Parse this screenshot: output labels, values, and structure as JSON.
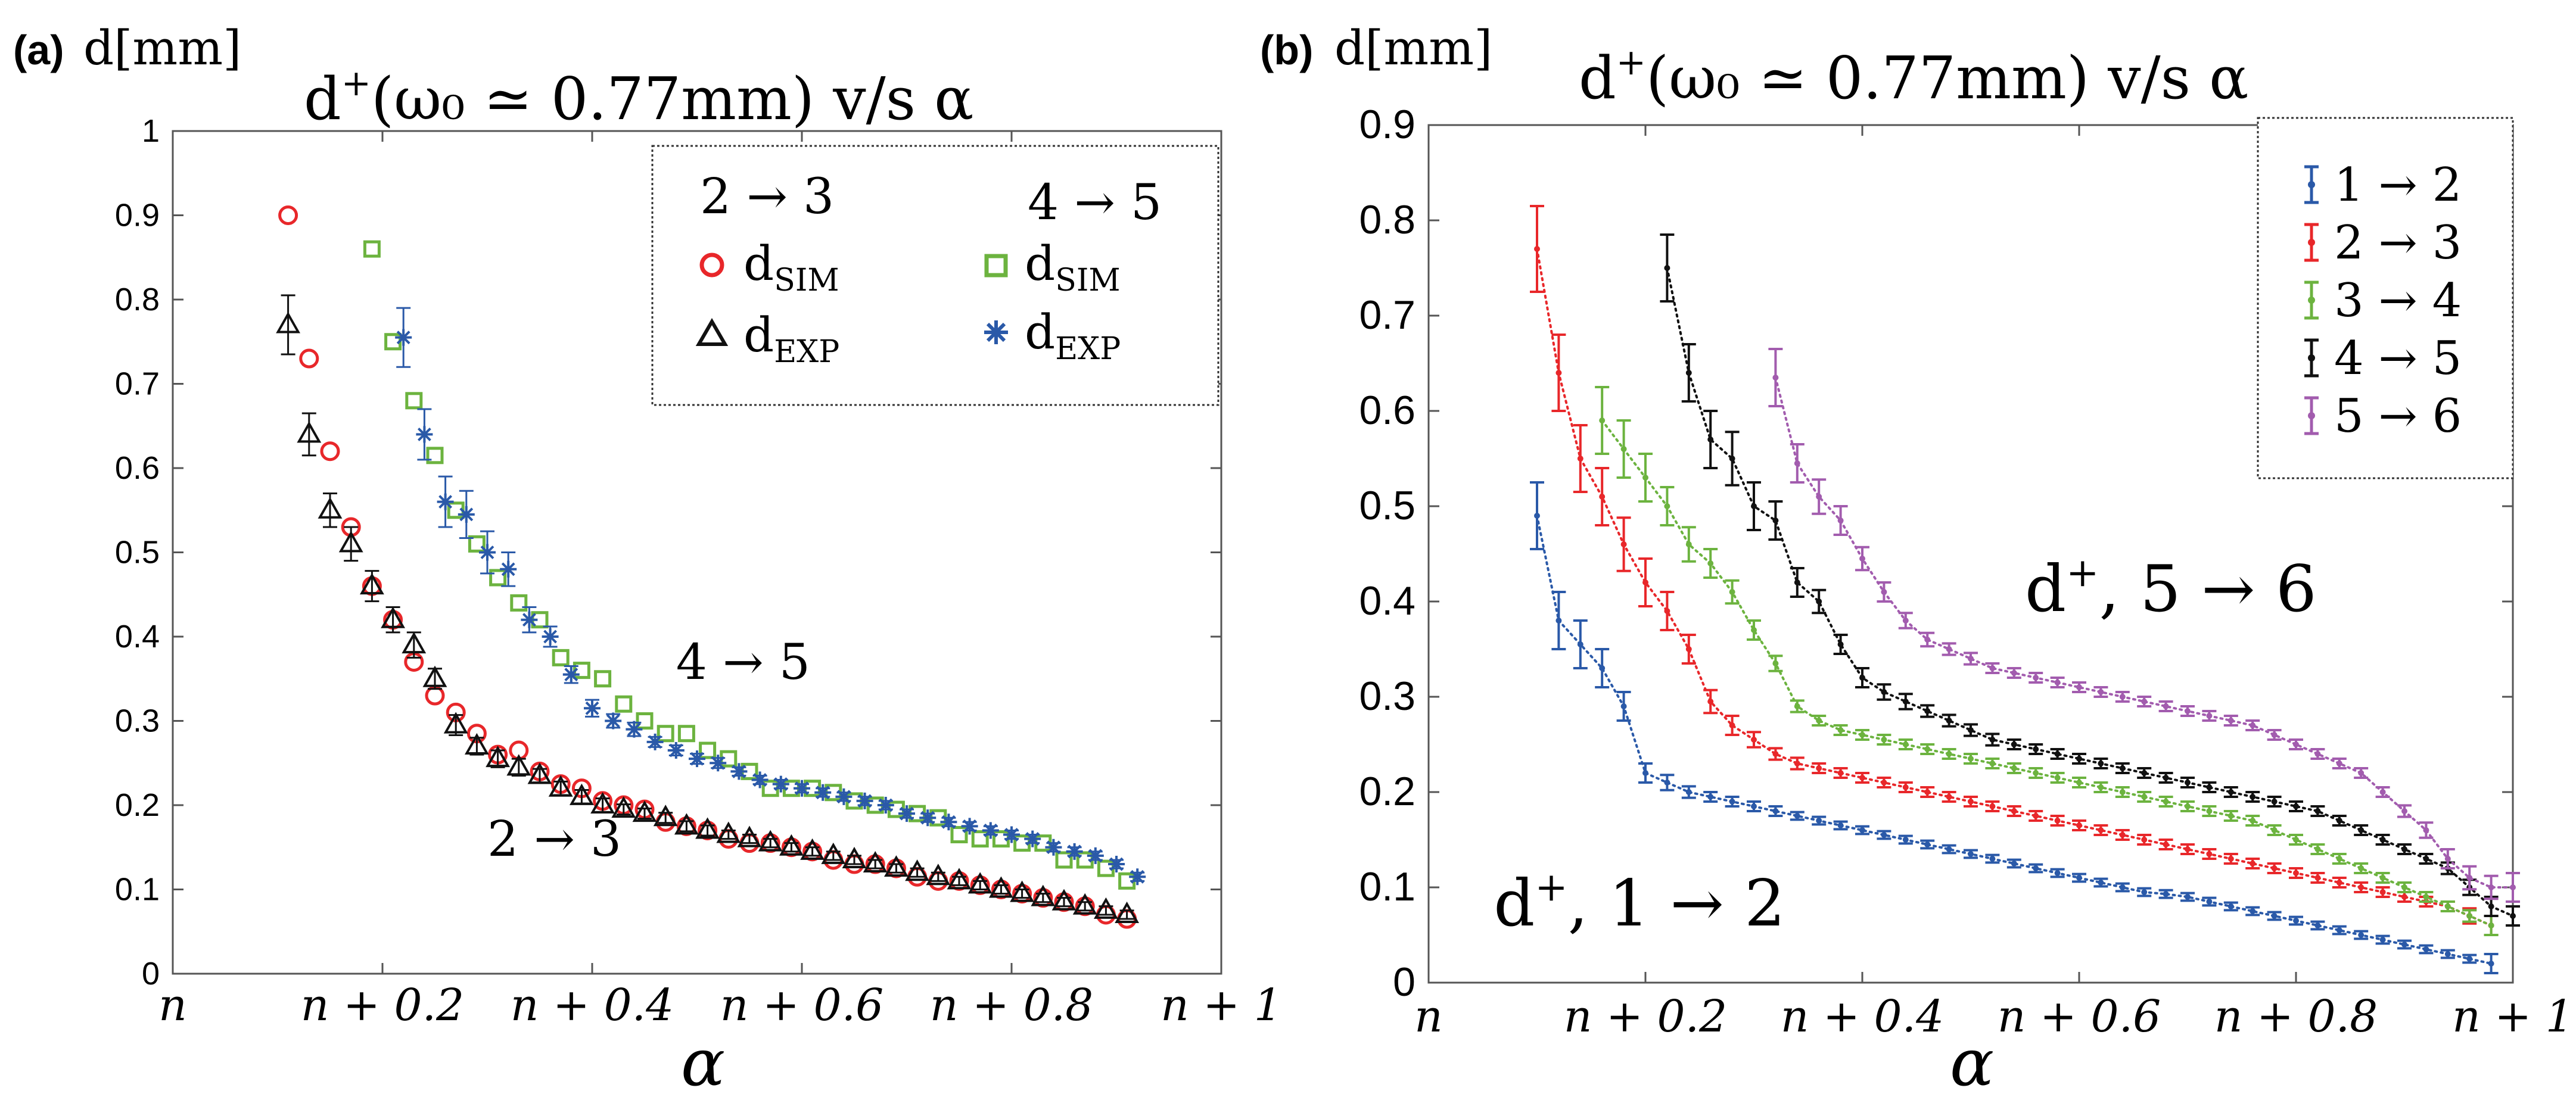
{
  "colors": {
    "red": "#e8272a",
    "green": "#6cb33f",
    "blue": "#2a59a8",
    "black": "#111111",
    "purple": "#a25cae"
  },
  "chart_data": [
    {
      "type": "scatter",
      "panel_label": "(a)",
      "ylabel_top": "d[mm]",
      "title_main": "d",
      "title_sup": "+",
      "title_rest": "(ω₀ ≃ 0.77mm) v/s α",
      "xlabel": "α",
      "xlim": [
        0,
        1
      ],
      "ylim": [
        0,
        1
      ],
      "x_tick_values": [
        0,
        0.2,
        0.4,
        0.6,
        0.8,
        1
      ],
      "x_tick_labels": [
        "n",
        "n + 0.2",
        "n + 0.4",
        "n + 0.6",
        "n + 0.8",
        "n + 1"
      ],
      "y_ticks": [
        0,
        0.1,
        0.2,
        0.3,
        0.4,
        0.5,
        0.6,
        0.7,
        0.8,
        0.9,
        1
      ],
      "y_tick_labels": [
        "0",
        "0.1",
        "0.2",
        "0.3",
        "0.4",
        "0.5",
        "0.6",
        "0.7",
        "0.8",
        "0.9",
        "1"
      ],
      "legend": {
        "placement": "top-right",
        "col1_header": "2 → 3",
        "col2_header": "4 → 5",
        "items": [
          {
            "series": "sim23",
            "label": "d",
            "sub": "SIM"
          },
          {
            "series": "sim45",
            "label": "d",
            "sub": "SIM"
          },
          {
            "series": "exp23",
            "label": "d",
            "sub": "EXP"
          },
          {
            "series": "exp45",
            "label": "d",
            "sub": "EXP"
          }
        ]
      },
      "annotations": [
        {
          "text": "4 → 5",
          "x": 0.48,
          "y": 0.35
        },
        {
          "text": "2 → 3",
          "x": 0.3,
          "y": 0.14
        }
      ],
      "series": [
        {
          "id": "sim23",
          "name": "2 → 3 dSIM",
          "marker": "circle",
          "color": "#e8272a",
          "x": [
            0.11,
            0.13,
            0.15,
            0.17,
            0.19,
            0.21,
            0.23,
            0.25,
            0.27,
            0.29,
            0.31,
            0.33,
            0.35,
            0.37,
            0.39,
            0.41,
            0.43,
            0.45,
            0.47,
            0.49,
            0.51,
            0.53,
            0.55,
            0.57,
            0.59,
            0.61,
            0.63,
            0.65,
            0.67,
            0.69,
            0.71,
            0.73,
            0.75,
            0.77,
            0.79,
            0.81,
            0.83,
            0.85,
            0.87,
            0.89,
            0.91
          ],
          "y": [
            0.9,
            0.73,
            0.62,
            0.53,
            0.46,
            0.42,
            0.37,
            0.33,
            0.31,
            0.285,
            0.26,
            0.265,
            0.24,
            0.225,
            0.22,
            0.205,
            0.2,
            0.195,
            0.18,
            0.175,
            0.17,
            0.16,
            0.155,
            0.155,
            0.15,
            0.145,
            0.135,
            0.13,
            0.13,
            0.125,
            0.115,
            0.11,
            0.11,
            0.105,
            0.1,
            0.095,
            0.09,
            0.085,
            0.08,
            0.07,
            0.065
          ]
        },
        {
          "id": "exp23",
          "name": "2 → 3 dEXP",
          "marker": "triangle",
          "color": "#111111",
          "x": [
            0.11,
            0.13,
            0.15,
            0.17,
            0.19,
            0.21,
            0.23,
            0.25,
            0.27,
            0.29,
            0.31,
            0.33,
            0.35,
            0.37,
            0.39,
            0.41,
            0.43,
            0.45,
            0.47,
            0.49,
            0.51,
            0.53,
            0.55,
            0.57,
            0.59,
            0.61,
            0.63,
            0.65,
            0.67,
            0.69,
            0.71,
            0.73,
            0.75,
            0.77,
            0.79,
            0.81,
            0.83,
            0.85,
            0.87,
            0.89,
            0.91
          ],
          "y": [
            0.77,
            0.64,
            0.55,
            0.51,
            0.46,
            0.42,
            0.39,
            0.35,
            0.295,
            0.27,
            0.255,
            0.245,
            0.235,
            0.22,
            0.21,
            0.2,
            0.195,
            0.19,
            0.185,
            0.175,
            0.17,
            0.165,
            0.16,
            0.155,
            0.15,
            0.145,
            0.14,
            0.135,
            0.13,
            0.125,
            0.12,
            0.115,
            0.11,
            0.105,
            0.1,
            0.095,
            0.09,
            0.085,
            0.08,
            0.075,
            0.07
          ],
          "err": [
            0.035,
            0.025,
            0.02,
            0.02,
            0.018,
            0.015,
            0.015,
            0.012,
            0.012,
            0.01,
            0.01,
            0.01,
            0.008,
            0.008,
            0.008,
            0.008,
            0.006,
            0.006,
            0.006,
            0.006,
            0.006,
            0.005,
            0.005,
            0.005,
            0.005,
            0.005,
            0.005,
            0.005,
            0.005,
            0.005,
            0.005,
            0.005,
            0.005,
            0.005,
            0.005,
            0.005,
            0.005,
            0.005,
            0.005,
            0.005,
            0.005
          ]
        },
        {
          "id": "sim45",
          "name": "4 → 5 dSIM",
          "marker": "square",
          "color": "#6cb33f",
          "x": [
            0.19,
            0.21,
            0.23,
            0.25,
            0.27,
            0.29,
            0.31,
            0.33,
            0.35,
            0.37,
            0.39,
            0.41,
            0.43,
            0.45,
            0.47,
            0.49,
            0.51,
            0.53,
            0.55,
            0.57,
            0.59,
            0.61,
            0.63,
            0.65,
            0.67,
            0.69,
            0.71,
            0.73,
            0.75,
            0.77,
            0.79,
            0.81,
            0.83,
            0.85,
            0.87,
            0.89,
            0.91
          ],
          "y": [
            0.86,
            0.75,
            0.68,
            0.615,
            0.55,
            0.51,
            0.47,
            0.44,
            0.42,
            0.375,
            0.36,
            0.35,
            0.32,
            0.3,
            0.285,
            0.285,
            0.265,
            0.255,
            0.24,
            0.22,
            0.22,
            0.22,
            0.215,
            0.205,
            0.2,
            0.195,
            0.19,
            0.185,
            0.165,
            0.16,
            0.16,
            0.155,
            0.155,
            0.135,
            0.135,
            0.125,
            0.11
          ]
        },
        {
          "id": "exp45",
          "name": "4 → 5 dEXP",
          "marker": "asterisk",
          "color": "#2a59a8",
          "x": [
            0.22,
            0.24,
            0.26,
            0.28,
            0.3,
            0.32,
            0.34,
            0.36,
            0.38,
            0.4,
            0.42,
            0.44,
            0.46,
            0.48,
            0.5,
            0.52,
            0.54,
            0.56,
            0.58,
            0.6,
            0.62,
            0.64,
            0.66,
            0.68,
            0.7,
            0.72,
            0.74,
            0.76,
            0.78,
            0.8,
            0.82,
            0.84,
            0.86,
            0.88,
            0.9,
            0.92
          ],
          "y": [
            0.755,
            0.64,
            0.56,
            0.545,
            0.5,
            0.48,
            0.42,
            0.4,
            0.355,
            0.315,
            0.3,
            0.29,
            0.275,
            0.265,
            0.255,
            0.25,
            0.24,
            0.23,
            0.225,
            0.22,
            0.215,
            0.21,
            0.205,
            0.2,
            0.19,
            0.185,
            0.18,
            0.175,
            0.17,
            0.165,
            0.16,
            0.15,
            0.145,
            0.14,
            0.13,
            0.115
          ],
          "err": [
            0.035,
            0.03,
            0.03,
            0.028,
            0.025,
            0.02,
            0.015,
            0.012,
            0.01,
            0.01,
            0.008,
            0.008,
            0.006,
            0.006,
            0.006,
            0.006,
            0.005,
            0.005,
            0.005,
            0.005,
            0.005,
            0.005,
            0.005,
            0.005,
            0.005,
            0.005,
            0.005,
            0.005,
            0.005,
            0.005,
            0.005,
            0.005,
            0.005,
            0.005,
            0.005,
            0.005
          ]
        }
      ]
    },
    {
      "type": "line",
      "panel_label": "(b)",
      "ylabel_top": "d[mm]",
      "title_main": "d",
      "title_sup": "+",
      "title_rest": "(ω₀ ≃ 0.77mm) v/s α",
      "xlabel": "α",
      "xlim": [
        0,
        1
      ],
      "ylim": [
        0,
        0.9
      ],
      "x_tick_values": [
        0,
        0.2,
        0.4,
        0.6,
        0.8,
        1
      ],
      "x_tick_labels": [
        "n",
        "n + 0.2",
        "n + 0.4",
        "n + 0.6",
        "n + 0.8",
        "n + 1"
      ],
      "y_ticks": [
        0,
        0.1,
        0.2,
        0.3,
        0.4,
        0.5,
        0.6,
        0.7,
        0.8,
        0.9
      ],
      "y_tick_labels": [
        "0",
        "0.1",
        "0.2",
        "0.3",
        "0.4",
        "0.5",
        "0.6",
        "0.7",
        "0.8",
        "0.9"
      ],
      "legend": {
        "placement": "top-right",
        "entries": [
          "1 → 2",
          "2 → 3",
          "3 → 4",
          "4 → 5",
          "5 → 6"
        ]
      },
      "annotations": [
        {
          "text": "d",
          "sup": "+",
          "rest": ", 5 → 6",
          "x": 0.55,
          "y": 0.39
        },
        {
          "text": "d",
          "sup": "+",
          "rest": ", 1 → 2",
          "x": 0.06,
          "y": 0.06
        }
      ],
      "series": [
        {
          "name": "1 → 2",
          "color": "#2a59a8",
          "start": 0.1,
          "end": 0.98,
          "step": 0.02,
          "y": [
            0.49,
            0.38,
            0.355,
            0.33,
            0.29,
            0.22,
            0.21,
            0.2,
            0.195,
            0.19,
            0.185,
            0.18,
            0.175,
            0.17,
            0.165,
            0.16,
            0.155,
            0.15,
            0.145,
            0.14,
            0.135,
            0.13,
            0.125,
            0.12,
            0.115,
            0.11,
            0.105,
            0.1,
            0.095,
            0.093,
            0.09,
            0.085,
            0.08,
            0.075,
            0.07,
            0.065,
            0.06,
            0.055,
            0.05,
            0.045,
            0.04,
            0.035,
            0.03,
            0.025,
            0.02
          ],
          "err": [
            0.035,
            0.03,
            0.025,
            0.02,
            0.015,
            0.01,
            0.008,
            0.006,
            0.005,
            0.005,
            0.005,
            0.005,
            0.004,
            0.004,
            0.004,
            0.004,
            0.004,
            0.004,
            0.004,
            0.004,
            0.004,
            0.004,
            0.004,
            0.004,
            0.004,
            0.004,
            0.004,
            0.004,
            0.004,
            0.004,
            0.004,
            0.004,
            0.004,
            0.004,
            0.004,
            0.004,
            0.004,
            0.004,
            0.004,
            0.004,
            0.004,
            0.004,
            0.004,
            0.004,
            0.01
          ]
        },
        {
          "name": "2 → 3",
          "color": "#e8272a",
          "start": 0.1,
          "end": 0.98,
          "step": 0.02,
          "y": [
            0.77,
            0.64,
            0.55,
            0.51,
            0.46,
            0.42,
            0.39,
            0.35,
            0.295,
            0.27,
            0.255,
            0.24,
            0.23,
            0.225,
            0.22,
            0.215,
            0.21,
            0.205,
            0.2,
            0.195,
            0.19,
            0.185,
            0.18,
            0.175,
            0.17,
            0.165,
            0.16,
            0.155,
            0.15,
            0.145,
            0.14,
            0.135,
            0.13,
            0.125,
            0.12,
            0.115,
            0.11,
            0.105,
            0.1,
            0.095,
            0.09,
            0.085,
            0.08,
            0.07,
            0.06
          ],
          "err": [
            0.045,
            0.04,
            0.035,
            0.03,
            0.028,
            0.025,
            0.02,
            0.015,
            0.012,
            0.01,
            0.008,
            0.006,
            0.006,
            0.005,
            0.005,
            0.005,
            0.005,
            0.005,
            0.005,
            0.005,
            0.005,
            0.005,
            0.005,
            0.005,
            0.005,
            0.005,
            0.005,
            0.005,
            0.005,
            0.005,
            0.005,
            0.005,
            0.005,
            0.005,
            0.005,
            0.005,
            0.005,
            0.005,
            0.005,
            0.005,
            0.005,
            0.005,
            0.005,
            0.008,
            0.01
          ]
        },
        {
          "name": "3 → 4",
          "color": "#6cb33f",
          "start": 0.16,
          "end": 0.98,
          "step": 0.02,
          "y": [
            0.59,
            0.56,
            0.53,
            0.5,
            0.46,
            0.44,
            0.41,
            0.37,
            0.335,
            0.29,
            0.275,
            0.265,
            0.26,
            0.255,
            0.25,
            0.245,
            0.24,
            0.235,
            0.23,
            0.225,
            0.22,
            0.215,
            0.21,
            0.205,
            0.2,
            0.195,
            0.19,
            0.185,
            0.18,
            0.175,
            0.17,
            0.16,
            0.15,
            0.14,
            0.13,
            0.12,
            0.11,
            0.1,
            0.09,
            0.08,
            0.07,
            0.06
          ],
          "err": [
            0.035,
            0.03,
            0.025,
            0.02,
            0.018,
            0.015,
            0.012,
            0.01,
            0.008,
            0.006,
            0.005,
            0.005,
            0.005,
            0.005,
            0.005,
            0.005,
            0.005,
            0.005,
            0.005,
            0.005,
            0.005,
            0.005,
            0.005,
            0.005,
            0.005,
            0.005,
            0.005,
            0.005,
            0.005,
            0.005,
            0.005,
            0.005,
            0.005,
            0.005,
            0.005,
            0.005,
            0.005,
            0.005,
            0.005,
            0.005,
            0.006,
            0.01
          ]
        },
        {
          "name": "4 → 5",
          "color": "#111111",
          "start": 0.22,
          "end": 0.98,
          "step": 0.02,
          "y": [
            0.75,
            0.64,
            0.57,
            0.55,
            0.5,
            0.485,
            0.42,
            0.4,
            0.355,
            0.32,
            0.305,
            0.295,
            0.285,
            0.275,
            0.265,
            0.255,
            0.25,
            0.245,
            0.24,
            0.235,
            0.23,
            0.225,
            0.22,
            0.215,
            0.21,
            0.205,
            0.2,
            0.195,
            0.19,
            0.185,
            0.18,
            0.17,
            0.16,
            0.15,
            0.14,
            0.13,
            0.12,
            0.1,
            0.08,
            0.07
          ],
          "err": [
            0.035,
            0.03,
            0.03,
            0.028,
            0.025,
            0.02,
            0.015,
            0.012,
            0.01,
            0.01,
            0.008,
            0.008,
            0.006,
            0.006,
            0.006,
            0.006,
            0.005,
            0.005,
            0.005,
            0.005,
            0.005,
            0.005,
            0.005,
            0.005,
            0.005,
            0.005,
            0.005,
            0.005,
            0.005,
            0.005,
            0.005,
            0.005,
            0.005,
            0.005,
            0.005,
            0.005,
            0.006,
            0.008,
            0.01,
            0.01
          ]
        },
        {
          "name": "5 → 6",
          "color": "#a25cae",
          "start": 0.32,
          "end": 0.98,
          "step": 0.02,
          "y": [
            0.635,
            0.545,
            0.51,
            0.485,
            0.445,
            0.41,
            0.38,
            0.36,
            0.35,
            0.34,
            0.33,
            0.325,
            0.32,
            0.315,
            0.31,
            0.305,
            0.3,
            0.295,
            0.29,
            0.285,
            0.28,
            0.275,
            0.27,
            0.26,
            0.25,
            0.24,
            0.23,
            0.22,
            0.2,
            0.18,
            0.16,
            0.13,
            0.11,
            0.1,
            0.1
          ],
          "err": [
            0.03,
            0.02,
            0.018,
            0.015,
            0.012,
            0.01,
            0.008,
            0.007,
            0.006,
            0.006,
            0.005,
            0.005,
            0.005,
            0.005,
            0.005,
            0.005,
            0.005,
            0.005,
            0.005,
            0.005,
            0.005,
            0.005,
            0.005,
            0.005,
            0.005,
            0.005,
            0.005,
            0.005,
            0.005,
            0.006,
            0.008,
            0.01,
            0.012,
            0.012,
            0.015
          ]
        }
      ]
    }
  ]
}
